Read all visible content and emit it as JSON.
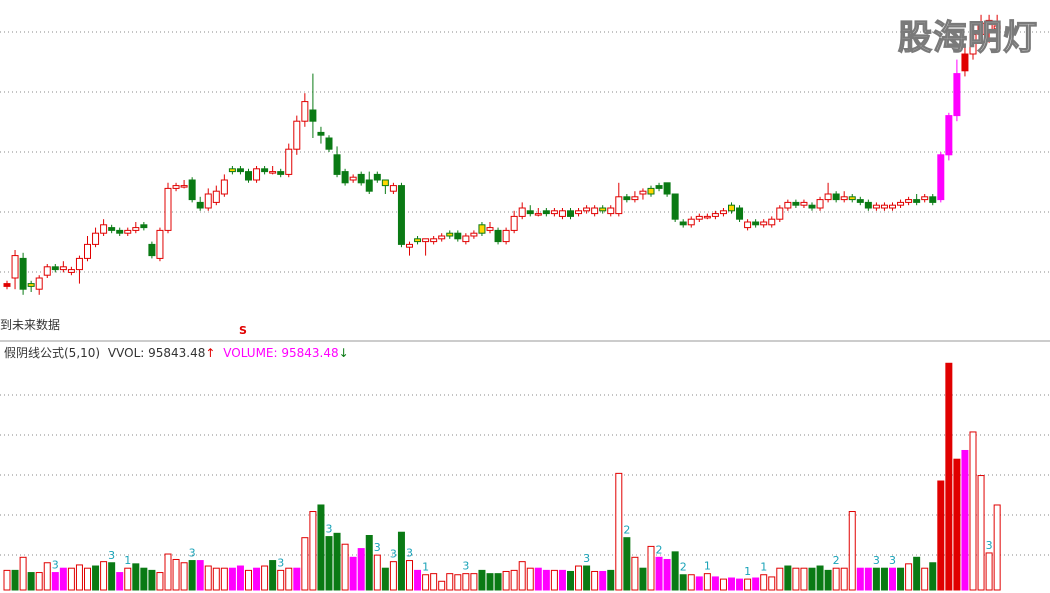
{
  "watermark": "股海明灯",
  "note": "到未来数据",
  "signal": "S",
  "legend": {
    "formula": "假阴线公式(5,10)",
    "vol": "VVOL: 95843.48",
    "vol_arrow": "↑",
    "volume": "VOLUME: 95843.48",
    "volume_arrow": "↓"
  },
  "colors": {
    "up": "#e00000",
    "down": "#0a7a14",
    "fake_yin": "#ff00ff",
    "doji": "#ffd700",
    "text": "#333333",
    "volume_label": "#1aa3b8",
    "grid": "#8a8a8a"
  },
  "chart_data": [
    {
      "type": "candlestick",
      "title": "",
      "ylim": [
        0,
        100
      ],
      "grid": true,
      "candles": [
        [
          7,
          8,
          6,
          9,
          "yin"
        ],
        [
          10,
          18,
          6,
          20,
          "yang"
        ],
        [
          17,
          6,
          4,
          19,
          "down"
        ],
        [
          7,
          8,
          5,
          9,
          "doji"
        ],
        [
          6,
          10,
          4,
          11,
          "yang"
        ],
        [
          11,
          14,
          10,
          15,
          "yang"
        ],
        [
          14,
          13,
          12,
          15,
          "down"
        ],
        [
          13,
          14,
          12,
          16,
          "yang"
        ],
        [
          12,
          13,
          11,
          14,
          "yang"
        ],
        [
          13,
          17,
          8,
          18,
          "yang"
        ],
        [
          17,
          22,
          16,
          25,
          "yang"
        ],
        [
          22,
          26,
          21,
          28,
          "yang"
        ],
        [
          26,
          29,
          25,
          31,
          "yang"
        ],
        [
          28,
          27,
          26,
          29,
          "down"
        ],
        [
          27,
          26,
          25,
          28,
          "down"
        ],
        [
          26,
          27,
          25,
          28,
          "yang"
        ],
        [
          27,
          28,
          26,
          30,
          "yang"
        ],
        [
          28,
          29,
          27,
          30,
          "down"
        ],
        [
          22,
          18,
          17,
          23,
          "down"
        ],
        [
          17,
          27,
          16,
          28,
          "yang"
        ],
        [
          27,
          42,
          26,
          44,
          "yang"
        ],
        [
          42,
          43,
          41,
          44,
          "yang"
        ],
        [
          43,
          43,
          42,
          45,
          "yang"
        ],
        [
          45,
          38,
          37,
          46,
          "down"
        ],
        [
          37,
          35,
          34,
          39,
          "down"
        ],
        [
          35,
          40,
          34,
          42,
          "yang"
        ],
        [
          37,
          41,
          36,
          43,
          "yang"
        ],
        [
          40,
          45,
          39,
          47,
          "yang"
        ],
        [
          48,
          49,
          47,
          50,
          "doji"
        ],
        [
          49,
          48,
          47,
          50,
          "down"
        ],
        [
          48,
          45,
          44,
          49,
          "down"
        ],
        [
          45,
          49,
          44,
          50,
          "yang"
        ],
        [
          49,
          48,
          47,
          50,
          "down"
        ],
        [
          48,
          48,
          47,
          50,
          "yang"
        ],
        [
          48,
          47,
          46,
          49,
          "down"
        ],
        [
          47,
          56,
          46,
          58,
          "yang"
        ],
        [
          56,
          66,
          54,
          68,
          "yang"
        ],
        [
          66,
          73,
          64,
          76,
          "yang"
        ],
        [
          70,
          66,
          60,
          83,
          "down"
        ],
        [
          62,
          61,
          58,
          64,
          "down"
        ],
        [
          60,
          56,
          55,
          61,
          "down"
        ],
        [
          54,
          47,
          46,
          57,
          "down"
        ],
        [
          48,
          44,
          43,
          49,
          "down"
        ],
        [
          45,
          46,
          44,
          47,
          "yang"
        ],
        [
          47,
          44,
          43,
          48,
          "down"
        ],
        [
          45,
          41,
          40,
          48,
          "down"
        ],
        [
          47,
          45,
          44,
          48,
          "down"
        ],
        [
          45,
          43,
          40,
          45,
          "doji"
        ],
        [
          43,
          41,
          40,
          44,
          "yang"
        ],
        [
          43,
          22,
          21,
          44,
          "down"
        ],
        [
          22,
          21,
          18,
          23,
          "yang"
        ],
        [
          23,
          24,
          22,
          25,
          "doji"
        ],
        [
          23,
          24,
          18,
          24,
          "yang"
        ],
        [
          23,
          24,
          22,
          25,
          "yang"
        ],
        [
          24,
          25,
          23,
          26,
          "yang"
        ],
        [
          25,
          26,
          24,
          27,
          "doji"
        ],
        [
          26,
          24,
          23,
          27,
          "down"
        ],
        [
          23,
          25,
          22,
          26,
          "yang"
        ],
        [
          25,
          26,
          24,
          27,
          "yang"
        ],
        [
          26,
          29,
          25,
          30,
          "doji"
        ],
        [
          28,
          27,
          26,
          30,
          "yang"
        ],
        [
          27,
          23,
          22,
          28,
          "down"
        ],
        [
          23,
          27,
          22,
          28,
          "yang"
        ],
        [
          27,
          32,
          26,
          34,
          "yang"
        ],
        [
          32,
          35,
          31,
          37,
          "yang"
        ],
        [
          34,
          33,
          32,
          36,
          "down"
        ],
        [
          33,
          33,
          32,
          35,
          "yang"
        ],
        [
          34,
          33,
          32,
          35,
          "down"
        ],
        [
          33,
          34,
          32,
          35,
          "yang"
        ],
        [
          34,
          32,
          31,
          35,
          "yang"
        ],
        [
          32,
          34,
          31,
          35,
          "down"
        ],
        [
          33,
          34,
          32,
          35,
          "yang"
        ],
        [
          34,
          35,
          33,
          36,
          "yang"
        ],
        [
          35,
          33,
          32,
          36,
          "yang"
        ],
        [
          34,
          35,
          33,
          36,
          "doji"
        ],
        [
          35,
          33,
          32,
          36,
          "yang"
        ],
        [
          33,
          39,
          32,
          44,
          "yang"
        ],
        [
          39,
          38,
          37,
          40,
          "down"
        ],
        [
          38,
          39,
          37,
          41,
          "yang"
        ],
        [
          40,
          41,
          38,
          42,
          "yang"
        ],
        [
          42,
          40,
          39,
          43,
          "doji"
        ],
        [
          42,
          43,
          41,
          44,
          "down"
        ],
        [
          44,
          40,
          39,
          44,
          "down"
        ],
        [
          40,
          31,
          30,
          40,
          "down"
        ],
        [
          30,
          29,
          28,
          31,
          "down"
        ],
        [
          29,
          31,
          28,
          32,
          "yang"
        ],
        [
          31,
          32,
          30,
          33,
          "yang"
        ],
        [
          32,
          32,
          31,
          33,
          "yang"
        ],
        [
          32,
          33,
          31,
          34,
          "yang"
        ],
        [
          33,
          34,
          32,
          35,
          "yang"
        ],
        [
          34,
          36,
          33,
          37,
          "doji"
        ],
        [
          35,
          31,
          30,
          36,
          "down"
        ],
        [
          30,
          28,
          27,
          31,
          "yang"
        ],
        [
          29,
          30,
          28,
          31,
          "down"
        ],
        [
          30,
          29,
          28,
          31,
          "yang"
        ],
        [
          29,
          31,
          28,
          32,
          "yang"
        ],
        [
          31,
          35,
          30,
          36,
          "yang"
        ],
        [
          35,
          37,
          34,
          38,
          "yang"
        ],
        [
          37,
          36,
          35,
          38,
          "down"
        ],
        [
          37,
          36,
          35,
          38,
          "yang"
        ],
        [
          36,
          35,
          34,
          37,
          "down"
        ],
        [
          35,
          38,
          34,
          39,
          "yang"
        ],
        [
          38,
          40,
          37,
          44,
          "yang"
        ],
        [
          40,
          38,
          37,
          41,
          "down"
        ],
        [
          38,
          39,
          37,
          41,
          "yang"
        ],
        [
          39,
          38,
          37,
          40,
          "doji"
        ],
        [
          38,
          37,
          36,
          39,
          "down"
        ],
        [
          37,
          35,
          34,
          38,
          "down"
        ],
        [
          36,
          35,
          34,
          37,
          "yang"
        ],
        [
          35,
          36,
          34,
          37,
          "yang"
        ],
        [
          36,
          35,
          34,
          37,
          "yang"
        ],
        [
          36,
          37,
          35,
          38,
          "yang"
        ],
        [
          37,
          38,
          36,
          39,
          "yang"
        ],
        [
          37,
          38,
          36,
          40,
          "down"
        ],
        [
          38,
          39,
          37,
          40,
          "yang"
        ],
        [
          39,
          37,
          36,
          40,
          "down"
        ],
        [
          38,
          54,
          37,
          55,
          "fake"
        ],
        [
          54,
          68,
          52,
          69,
          "fake"
        ],
        [
          68,
          83,
          66,
          88,
          "fake"
        ],
        [
          84,
          90,
          82,
          93,
          "yin"
        ],
        [
          90,
          97,
          88,
          99,
          "yang"
        ],
        [
          97,
          101,
          95,
          104,
          "yang"
        ],
        [
          102,
          98,
          94,
          104,
          "yang"
        ],
        [
          99,
          100,
          94,
          104,
          "yang"
        ]
      ]
    },
    {
      "type": "bar",
      "title": "",
      "ylim": [
        0,
        100
      ],
      "grid": true,
      "volumes": [
        [
          18,
          "up"
        ],
        [
          18,
          "down"
        ],
        [
          30,
          "up"
        ],
        [
          16,
          "down"
        ],
        [
          16,
          "up"
        ],
        [
          25,
          "up"
        ],
        [
          16,
          "fake"
        ],
        [
          20,
          "fake"
        ],
        [
          20,
          "up"
        ],
        [
          23,
          "up"
        ],
        [
          20,
          "up"
        ],
        [
          22,
          "down"
        ],
        [
          26,
          "up"
        ],
        [
          25,
          "down"
        ],
        [
          16,
          "fake"
        ],
        [
          20,
          "up"
        ],
        [
          24,
          "down"
        ],
        [
          20,
          "down"
        ],
        [
          18,
          "down"
        ],
        [
          16,
          "up"
        ],
        [
          33,
          "up"
        ],
        [
          28,
          "up"
        ],
        [
          25,
          "up"
        ],
        [
          27,
          "down"
        ],
        [
          27,
          "fake"
        ],
        [
          22,
          "up"
        ],
        [
          20,
          "up"
        ],
        [
          20,
          "up"
        ],
        [
          20,
          "fake"
        ],
        [
          22,
          "fake"
        ],
        [
          18,
          "up"
        ],
        [
          20,
          "fake"
        ],
        [
          22,
          "up"
        ],
        [
          27,
          "down"
        ],
        [
          18,
          "up"
        ],
        [
          20,
          "up"
        ],
        [
          20,
          "fake"
        ],
        [
          48,
          "up"
        ],
        [
          72,
          "up"
        ],
        [
          78,
          "down"
        ],
        [
          49,
          "down"
        ],
        [
          52,
          "down"
        ],
        [
          42,
          "up"
        ],
        [
          30,
          "fake"
        ],
        [
          38,
          "fake"
        ],
        [
          50,
          "down"
        ],
        [
          32,
          "up"
        ],
        [
          20,
          "down"
        ],
        [
          26,
          "up"
        ],
        [
          53,
          "down"
        ],
        [
          27,
          "up"
        ],
        [
          18,
          "fake"
        ],
        [
          14,
          "up"
        ],
        [
          15,
          "up"
        ],
        [
          8,
          "up"
        ],
        [
          15,
          "up"
        ],
        [
          14,
          "up"
        ],
        [
          15,
          "up"
        ],
        [
          15,
          "up"
        ],
        [
          18,
          "down"
        ],
        [
          15,
          "down"
        ],
        [
          15,
          "down"
        ],
        [
          17,
          "up"
        ],
        [
          18,
          "up"
        ],
        [
          26,
          "up"
        ],
        [
          20,
          "up"
        ],
        [
          20,
          "fake"
        ],
        [
          18,
          "fake"
        ],
        [
          18,
          "up"
        ],
        [
          18,
          "fake"
        ],
        [
          17,
          "down"
        ],
        [
          22,
          "up"
        ],
        [
          22,
          "down"
        ],
        [
          17,
          "up"
        ],
        [
          17,
          "fake"
        ],
        [
          18,
          "down"
        ],
        [
          107,
          "up"
        ],
        [
          48,
          "down"
        ],
        [
          30,
          "up"
        ],
        [
          20,
          "down"
        ],
        [
          40,
          "up"
        ],
        [
          30,
          "fake"
        ],
        [
          28,
          "fake"
        ],
        [
          35,
          "down"
        ],
        [
          14,
          "down"
        ],
        [
          14,
          "up"
        ],
        [
          12,
          "fake"
        ],
        [
          15,
          "up"
        ],
        [
          12,
          "fake"
        ],
        [
          10,
          "up"
        ],
        [
          11,
          "fake"
        ],
        [
          10,
          "fake"
        ],
        [
          10,
          "up"
        ],
        [
          11,
          "fake"
        ],
        [
          14,
          "up"
        ],
        [
          12,
          "up"
        ],
        [
          20,
          "up"
        ],
        [
          22,
          "down"
        ],
        [
          20,
          "up"
        ],
        [
          20,
          "up"
        ],
        [
          20,
          "down"
        ],
        [
          22,
          "down"
        ],
        [
          18,
          "down"
        ],
        [
          20,
          "up"
        ],
        [
          20,
          "up"
        ],
        [
          72,
          "up"
        ],
        [
          20,
          "fake"
        ],
        [
          20,
          "fake"
        ],
        [
          20,
          "down"
        ],
        [
          20,
          "down"
        ],
        [
          20,
          "fake"
        ],
        [
          20,
          "down"
        ],
        [
          24,
          "up"
        ],
        [
          30,
          "down"
        ],
        [
          20,
          "up"
        ],
        [
          25,
          "down"
        ],
        [
          100,
          "solid"
        ],
        [
          208,
          "solid"
        ],
        [
          120,
          "solid"
        ],
        [
          128,
          "fake"
        ],
        [
          145,
          "up"
        ],
        [
          105,
          "up"
        ],
        [
          34,
          "up"
        ],
        [
          78,
          "up"
        ]
      ],
      "labels": [
        [
          6,
          "3"
        ],
        [
          13,
          "3"
        ],
        [
          15,
          "1"
        ],
        [
          23,
          "3"
        ],
        [
          34,
          "3"
        ],
        [
          40,
          "3"
        ],
        [
          46,
          "3"
        ],
        [
          48,
          "3"
        ],
        [
          50,
          "3"
        ],
        [
          52,
          "1"
        ],
        [
          57,
          "3"
        ],
        [
          72,
          "3"
        ],
        [
          77,
          "2"
        ],
        [
          81,
          "2"
        ],
        [
          84,
          "2"
        ],
        [
          87,
          "1"
        ],
        [
          92,
          "1"
        ],
        [
          94,
          "1"
        ],
        [
          103,
          "2"
        ],
        [
          108,
          "3"
        ],
        [
          110,
          "3"
        ],
        [
          122,
          "3"
        ]
      ]
    }
  ]
}
